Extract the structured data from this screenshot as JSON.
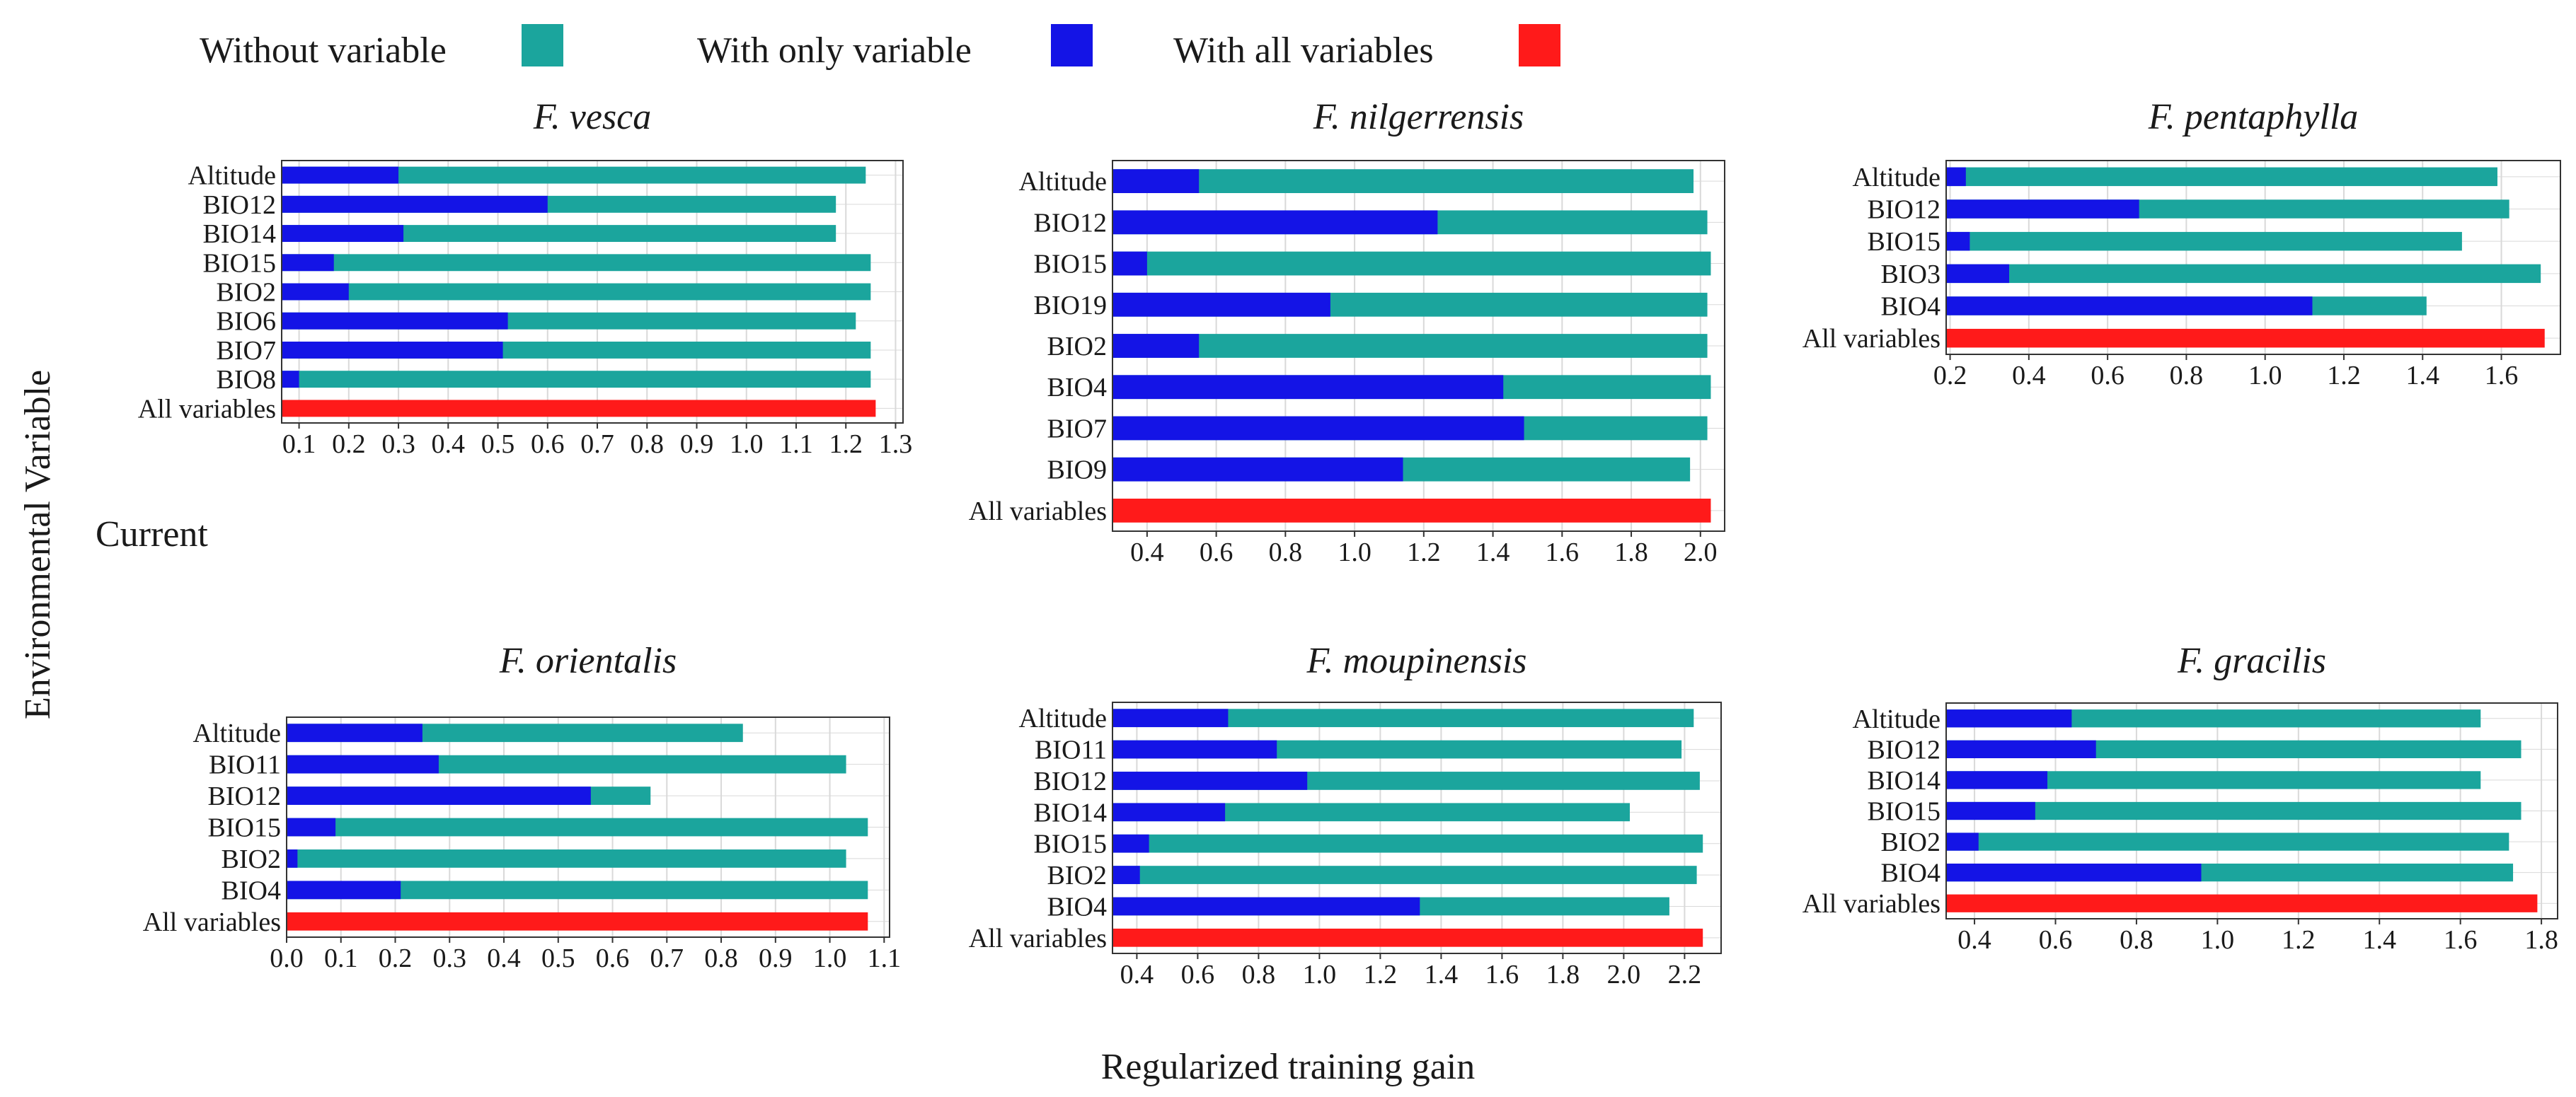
{
  "legend": {
    "without_label": "Without variable",
    "only_label": "With only variable",
    "all_label": "With all variables"
  },
  "colors": {
    "without": "#1ba59d",
    "only": "#1414e6",
    "all": "#ff1a1a",
    "grid": "#d9d9d9",
    "axis": "#333333"
  },
  "labels": {
    "y_axis": "Environmental Variable",
    "x_axis": "Regularized training gain",
    "scenario": "Current"
  },
  "chart_data": [
    {
      "type": "bar",
      "title": "F. vesca",
      "categories": [
        "Altitude",
        "BIO12",
        "BIO14",
        "BIO15",
        "BIO2",
        "BIO6",
        "BIO7",
        "BIO8",
        "All variables"
      ],
      "series": [
        {
          "name": "Without variable",
          "values": [
            1.24,
            1.18,
            1.18,
            1.25,
            1.25,
            1.22,
            1.25,
            1.25,
            null
          ]
        },
        {
          "name": "With only variable",
          "values": [
            0.3,
            0.6,
            0.31,
            0.17,
            0.2,
            0.52,
            0.51,
            0.1,
            null
          ]
        },
        {
          "name": "With all variables",
          "values": [
            null,
            null,
            null,
            null,
            null,
            null,
            null,
            null,
            1.26
          ]
        }
      ],
      "xlim": [
        0.065,
        1.315
      ],
      "xticks": [
        "0.1",
        "0.2",
        "0.3",
        "0.4",
        "0.5",
        "0.6",
        "0.7",
        "0.8",
        "0.9",
        "1.0",
        "1.1",
        "1.2",
        "1.3"
      ],
      "xlabel": "Regularized training gain",
      "ylabel": "Environmental Variable"
    },
    {
      "type": "bar",
      "title": "F. nilgerrensis",
      "categories": [
        "Altitude",
        "BIO12",
        "BIO15",
        "BIO19",
        "BIO2",
        "BIO4",
        "BIO7",
        "BIO9",
        "All variables"
      ],
      "series": [
        {
          "name": "Without variable",
          "values": [
            1.98,
            2.02,
            2.03,
            2.02,
            2.02,
            2.03,
            2.02,
            1.97,
            null
          ]
        },
        {
          "name": "With only variable",
          "values": [
            0.55,
            1.24,
            0.4,
            0.93,
            0.55,
            1.43,
            1.49,
            1.14,
            null
          ]
        },
        {
          "name": "With all variables",
          "values": [
            null,
            null,
            null,
            null,
            null,
            null,
            null,
            null,
            2.03
          ]
        }
      ],
      "xlim": [
        0.3,
        2.07
      ],
      "xticks": [
        "0.4",
        "0.6",
        "0.8",
        "1.0",
        "1.2",
        "1.4",
        "1.6",
        "1.8",
        "2.0"
      ],
      "xlabel": "Regularized training gain",
      "ylabel": "Environmental Variable"
    },
    {
      "type": "bar",
      "title": "F. pentaphylla",
      "categories": [
        "Altitude",
        "BIO12",
        "BIO15",
        "BIO3",
        "BIO4",
        "All variables"
      ],
      "series": [
        {
          "name": "Without variable",
          "values": [
            1.59,
            1.62,
            1.5,
            1.7,
            1.41,
            null
          ]
        },
        {
          "name": "With only variable",
          "values": [
            0.24,
            0.68,
            0.25,
            0.35,
            1.12,
            null
          ]
        },
        {
          "name": "With all variables",
          "values": [
            null,
            null,
            null,
            null,
            null,
            1.71
          ]
        }
      ],
      "xlim": [
        0.19,
        1.75
      ],
      "xticks": [
        "0.2",
        "0.4",
        "0.6",
        "0.8",
        "1.0",
        "1.2",
        "1.4",
        "1.6"
      ],
      "xlabel": "Regularized training gain",
      "ylabel": "Environmental Variable"
    },
    {
      "type": "bar",
      "title": "F. orientalis",
      "categories": [
        "Altitude",
        "BIO11",
        "BIO12",
        "BIO15",
        "BIO2",
        "BIO4",
        "All variables"
      ],
      "series": [
        {
          "name": "Without variable",
          "values": [
            0.84,
            1.03,
            0.67,
            1.07,
            1.03,
            1.07,
            null
          ]
        },
        {
          "name": "With only variable",
          "values": [
            0.25,
            0.28,
            0.56,
            0.09,
            0.02,
            0.21,
            null
          ]
        },
        {
          "name": "With all variables",
          "values": [
            null,
            null,
            null,
            null,
            null,
            null,
            1.07
          ]
        }
      ],
      "xlim": [
        0.0,
        1.11
      ],
      "xticks": [
        "0.0",
        "0.1",
        "0.2",
        "0.3",
        "0.4",
        "0.5",
        "0.6",
        "0.7",
        "0.8",
        "0.9",
        "1.0",
        "1.1"
      ],
      "xlabel": "Regularized training gain",
      "ylabel": "Environmental Variable"
    },
    {
      "type": "bar",
      "title": "F. moupinensis",
      "categories": [
        "Altitude",
        "BIO11",
        "BIO12",
        "BIO14",
        "BIO15",
        "BIO2",
        "BIO4",
        "All variables"
      ],
      "series": [
        {
          "name": "Without variable",
          "values": [
            2.23,
            2.19,
            2.25,
            2.02,
            2.26,
            2.24,
            2.15,
            null
          ]
        },
        {
          "name": "With only variable",
          "values": [
            0.7,
            0.86,
            0.96,
            0.69,
            0.44,
            0.41,
            1.33,
            null
          ]
        },
        {
          "name": "With all variables",
          "values": [
            null,
            null,
            null,
            null,
            null,
            null,
            null,
            2.26
          ]
        }
      ],
      "xlim": [
        0.32,
        2.32
      ],
      "xticks": [
        "0.4",
        "0.6",
        "0.8",
        "1.0",
        "1.2",
        "1.4",
        "1.6",
        "1.8",
        "2.0",
        "2.2"
      ],
      "xlabel": "Regularized training gain",
      "ylabel": "Environmental Variable"
    },
    {
      "type": "bar",
      "title": "F. gracilis",
      "categories": [
        "Altitude",
        "BIO12",
        "BIO14",
        "BIO15",
        "BIO2",
        "BIO4",
        "All variables"
      ],
      "series": [
        {
          "name": "Without variable",
          "values": [
            1.65,
            1.75,
            1.65,
            1.75,
            1.72,
            1.73,
            null
          ]
        },
        {
          "name": "With only variable",
          "values": [
            0.64,
            0.7,
            0.58,
            0.55,
            0.41,
            0.96,
            null
          ]
        },
        {
          "name": "With all variables",
          "values": [
            null,
            null,
            null,
            null,
            null,
            null,
            1.79
          ]
        }
      ],
      "xlim": [
        0.33,
        1.84
      ],
      "xticks": [
        "0.4",
        "0.6",
        "0.8",
        "1.0",
        "1.2",
        "1.4",
        "1.6",
        "1.8"
      ],
      "xlabel": "Regularized training gain",
      "ylabel": "Environmental Variable"
    }
  ]
}
